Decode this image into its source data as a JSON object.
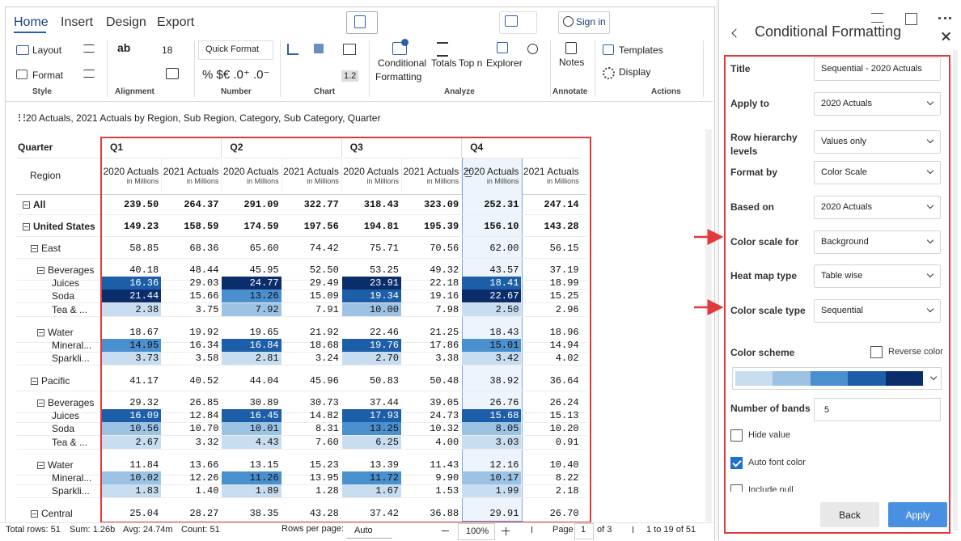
{
  "toolbar": {
    "tabs": [
      "Home",
      "Insert",
      "Design",
      "Export"
    ],
    "sign_in": "Sign in",
    "style": {
      "label": "Style",
      "layout": "Layout",
      "format": "Format"
    },
    "alignment": {
      "label": "Alignment",
      "wrap": "ab",
      "font_size": "18"
    },
    "number": {
      "label": "Number",
      "quick_format": "Quick Format",
      "symbols": "% $€ .0⁺ .0⁻"
    },
    "chart": {
      "label": "Chart",
      "decimal": "1.2"
    },
    "analyze": {
      "label": "Analyze",
      "conditional_formatting": [
        "Conditional",
        "Formatting"
      ],
      "totals": "Totals",
      "top_n": "Top n",
      "explorer": "Explorer"
    },
    "annotate": {
      "label": "Annotate",
      "notes": "Notes"
    },
    "actions": {
      "label": "Actions",
      "templates": "Templates",
      "display": "Display"
    }
  },
  "breadcrumb": "20 Actuals, 2021 Actuals by Region, Sub Region, Category, Sub Category, Quarter",
  "table": {
    "corner": "Quarter",
    "row_header": "Region",
    "quarters": [
      "Q1",
      "Q2",
      "Q3",
      "Q4"
    ],
    "columns": [
      {
        "name": "2020 Actuals",
        "unit": "in Millions"
      },
      {
        "name": "2021 Actuals",
        "unit": "in Millions"
      },
      {
        "name": "2020 Actuals",
        "unit": "in Millions"
      },
      {
        "name": "2021 Actuals",
        "unit": "in Millions"
      },
      {
        "name": "2020 Actuals",
        "unit": "in Millions"
      },
      {
        "name": "2021 Actuals",
        "unit": "in Millions"
      },
      {
        "name": "2020 Actuals",
        "unit": "in Millions"
      },
      {
        "name": "2021 Actuals",
        "unit": "in Millions"
      }
    ],
    "selected_column": 6,
    "rows": [
      {
        "label": "All",
        "level": 0,
        "values": [
          "239.50",
          "264.37",
          "291.09",
          "322.77",
          "318.43",
          "323.09",
          "252.31",
          "247.14"
        ]
      },
      {
        "label": "United States",
        "level": 1,
        "values": [
          "149.23",
          "158.59",
          "174.59",
          "197.56",
          "194.81",
          "195.39",
          "156.10",
          "143.28"
        ]
      },
      {
        "label": "East",
        "level": 2,
        "values": [
          "58.85",
          "68.36",
          "65.60",
          "74.42",
          "75.71",
          "70.56",
          "62.00",
          "56.15"
        ]
      },
      {
        "label": "Beverages",
        "level": 3,
        "values": [
          "40.18",
          "48.44",
          "45.95",
          "52.50",
          "53.25",
          "49.32",
          "43.57",
          "37.19"
        ]
      },
      {
        "label": "Juices",
        "level": 4,
        "values": [
          "16.36",
          "29.03",
          "24.77",
          "29.49",
          "23.91",
          "22.18",
          "18.41",
          "18.99"
        ]
      },
      {
        "label": "Soda",
        "level": 4,
        "values": [
          "21.44",
          "15.66",
          "13.26",
          "15.09",
          "19.34",
          "19.16",
          "22.67",
          "15.25"
        ]
      },
      {
        "label": "Tea & ...",
        "level": 4,
        "values": [
          "2.38",
          "3.75",
          "7.92",
          "7.91",
          "10.00",
          "7.98",
          "2.50",
          "2.96"
        ]
      },
      {
        "label": "Water",
        "level": 3,
        "values": [
          "18.67",
          "19.92",
          "19.65",
          "21.92",
          "22.46",
          "21.25",
          "18.43",
          "18.96"
        ]
      },
      {
        "label": "Mineral...",
        "level": 4,
        "values": [
          "14.95",
          "16.34",
          "16.84",
          "18.68",
          "19.76",
          "17.86",
          "15.01",
          "14.94"
        ]
      },
      {
        "label": "Sparkli...",
        "level": 4,
        "values": [
          "3.73",
          "3.58",
          "2.81",
          "3.24",
          "2.70",
          "3.38",
          "3.42",
          "4.02"
        ]
      },
      {
        "label": "Pacific",
        "level": 2,
        "values": [
          "41.17",
          "40.52",
          "44.04",
          "45.96",
          "50.83",
          "50.48",
          "38.92",
          "36.64"
        ]
      },
      {
        "label": "Beverages",
        "level": 3,
        "values": [
          "29.32",
          "26.85",
          "30.89",
          "30.73",
          "37.44",
          "39.05",
          "26.76",
          "26.24"
        ]
      },
      {
        "label": "Juices",
        "level": 4,
        "values": [
          "16.09",
          "12.84",
          "16.45",
          "14.82",
          "17.93",
          "24.73",
          "15.68",
          "15.13"
        ]
      },
      {
        "label": "Soda",
        "level": 4,
        "values": [
          "10.56",
          "10.70",
          "10.01",
          "8.31",
          "13.25",
          "10.32",
          "8.05",
          "10.20"
        ]
      },
      {
        "label": "Tea & ...",
        "level": 4,
        "values": [
          "2.67",
          "3.32",
          "4.43",
          "7.60",
          "6.25",
          "4.00",
          "3.03",
          "0.91"
        ]
      },
      {
        "label": "Water",
        "level": 3,
        "values": [
          "11.84",
          "13.66",
          "13.15",
          "15.23",
          "13.39",
          "11.43",
          "12.16",
          "10.40"
        ]
      },
      {
        "label": "Mineral...",
        "level": 4,
        "values": [
          "10.02",
          "12.26",
          "11.26",
          "13.95",
          "11.72",
          "9.90",
          "10.17",
          "8.22"
        ]
      },
      {
        "label": "Sparkli...",
        "level": 4,
        "values": [
          "1.83",
          "1.40",
          "1.89",
          "1.28",
          "1.67",
          "1.53",
          "1.99",
          "2.18"
        ]
      },
      {
        "label": "Central",
        "level": 2,
        "values": [
          "25.04",
          "28.27",
          "38.35",
          "43.28",
          "37.42",
          "36.88",
          "29.91",
          "26.70"
        ]
      }
    ]
  },
  "status": {
    "total_rows": "Total rows: 51",
    "sum": "Sum: 1.26b",
    "avg": "Avg: 24.74m",
    "count": "Count: 51",
    "rows_per_page": "Rows per page:",
    "rows_per_page_value": "Auto",
    "zoom": "100%",
    "page_label": "Page",
    "page": "1",
    "page_of": "of 3",
    "range": "1 to 19 of 51"
  },
  "panel": {
    "title": "Conditional Formatting",
    "fields": [
      {
        "label": "Title",
        "value": "Sequential - 2020 Actuals",
        "dropdown": false
      },
      {
        "label": "Apply to",
        "value": "2020 Actuals",
        "dropdown": true
      },
      {
        "label": "Row hierarchy levels",
        "value": "Values only",
        "dropdown": true
      },
      {
        "label": "Format by",
        "value": "Color Scale",
        "dropdown": true
      },
      {
        "label": "Based on",
        "value": "2020 Actuals",
        "dropdown": true
      },
      {
        "label": "Color scale for",
        "value": "Background",
        "dropdown": true
      },
      {
        "label": "Heat map type",
        "value": "Table wise",
        "dropdown": true
      },
      {
        "label": "Color scale type",
        "value": "Sequential",
        "dropdown": true
      }
    ],
    "color_scheme": {
      "label": "Color scheme",
      "colors": [
        "#c9ddf0",
        "#9cc3e4",
        "#4a8fce",
        "#1c5ea8",
        "#0b2d6b"
      ]
    },
    "reverse_color": {
      "label": "Reverse color",
      "checked": false
    },
    "bands": {
      "label": "Number of bands",
      "value": "5"
    },
    "checkboxes": [
      {
        "label": "Hide value",
        "checked": false
      },
      {
        "label": "Auto font color",
        "checked": true
      },
      {
        "label": "Include null",
        "checked": false
      }
    ],
    "buttons": [
      "Back",
      "Apply"
    ]
  }
}
